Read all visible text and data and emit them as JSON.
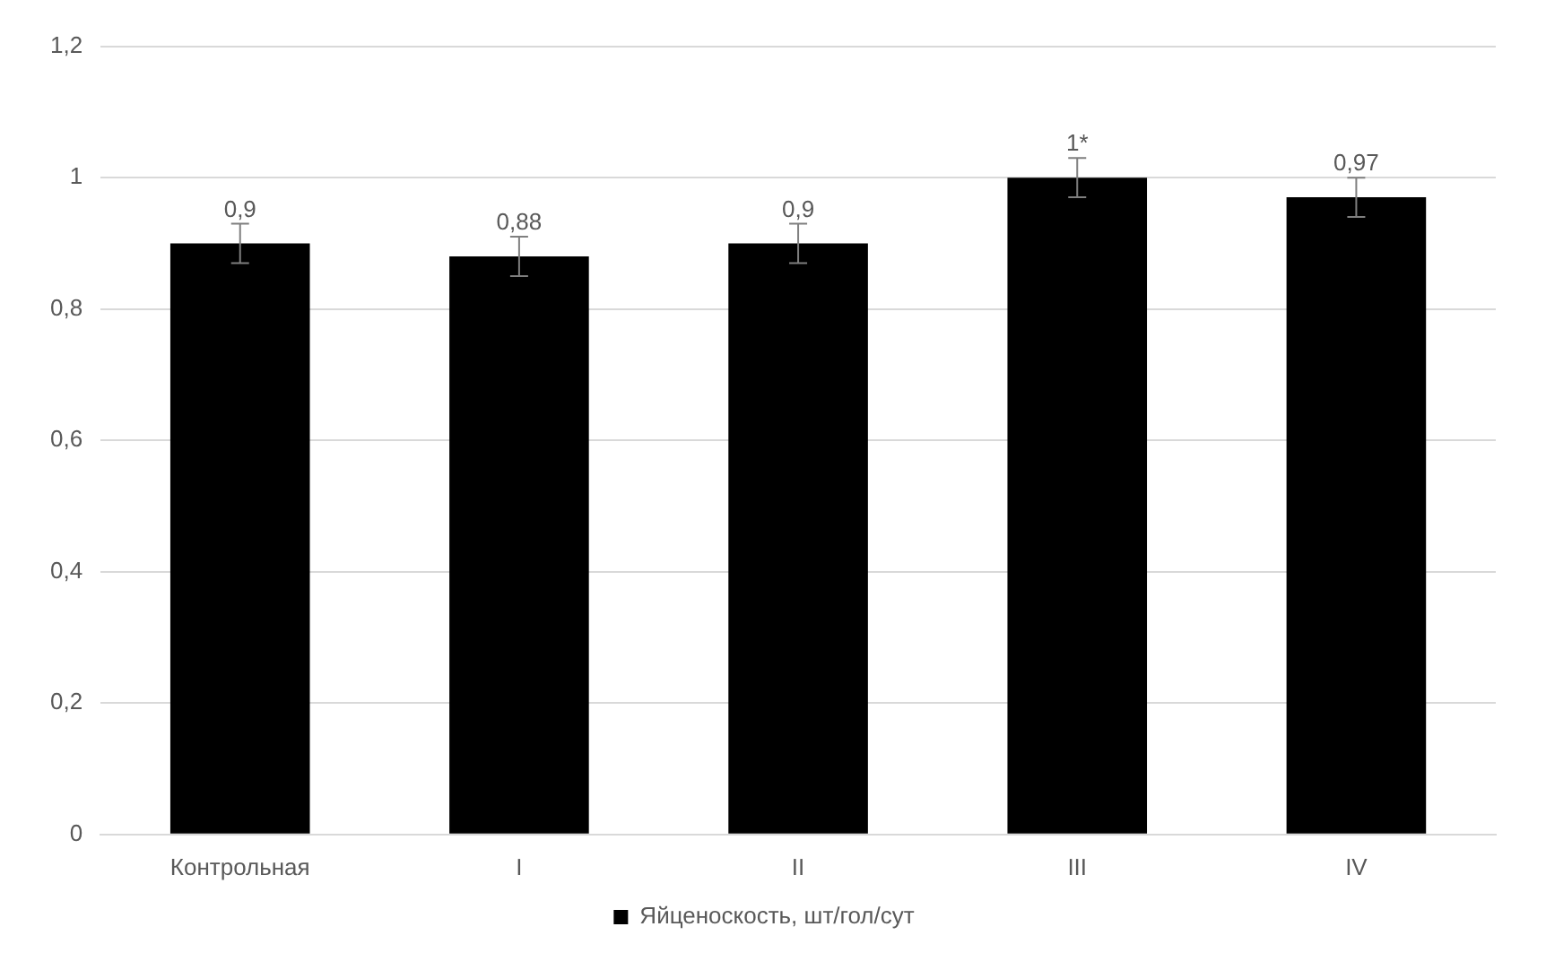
{
  "chart_data": {
    "type": "bar",
    "categories": [
      "Контрольная",
      "I",
      "II",
      "III",
      "IV"
    ],
    "series": [
      {
        "name": "Яйценоскость, шт/гол/сут",
        "color": "#000000",
        "values": [
          0.9,
          0.88,
          0.9,
          1,
          0.97
        ],
        "errors": [
          0.03,
          0.03,
          0.03,
          0.03,
          0.03
        ],
        "value_labels": [
          "0,9",
          "0,88",
          "0,9",
          "1*",
          "0,97"
        ]
      }
    ],
    "ylim": [
      0,
      1.2
    ],
    "yticks": [
      0,
      {
        "value": 0.2,
        "label": "0,2"
      },
      {
        "value": 0.4,
        "label": "0,4"
      },
      {
        "value": 0.6,
        "label": "0,6"
      },
      {
        "value": 0.8,
        "label": "0,8"
      },
      1,
      {
        "value": 1.2,
        "label": "1,2"
      }
    ],
    "grid": "y",
    "legend": "bottom"
  }
}
